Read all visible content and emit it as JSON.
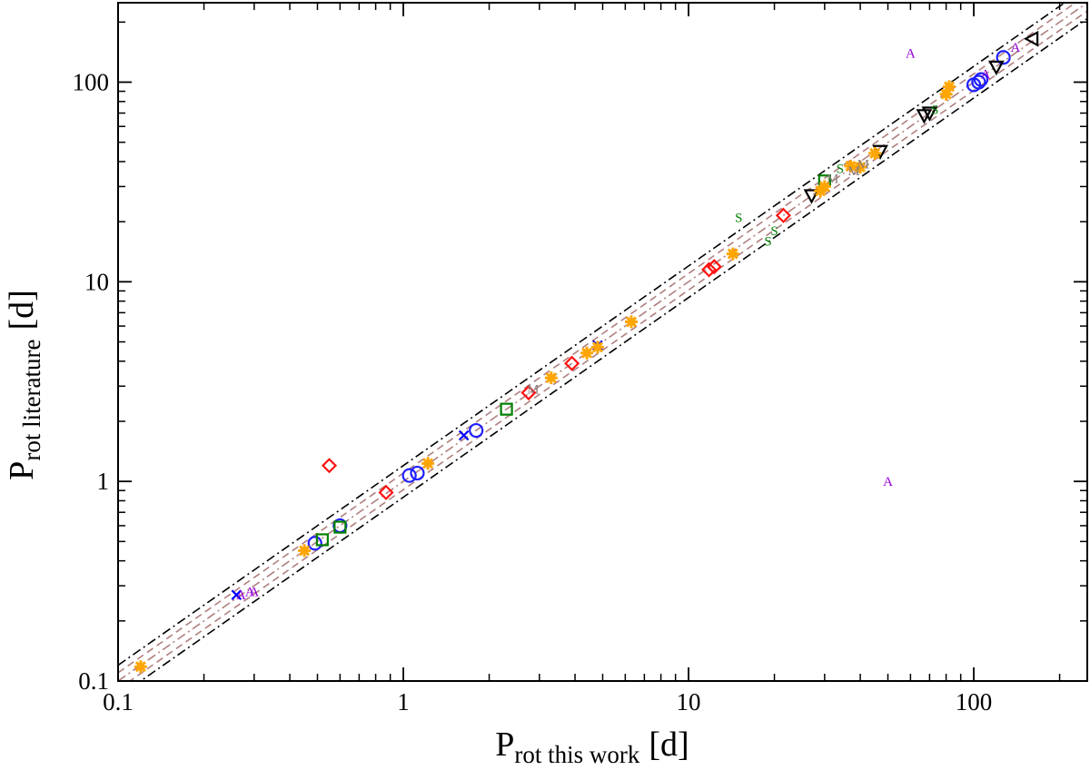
{
  "chart_data": {
    "type": "scatter",
    "title": "",
    "xlabel": {
      "main": "P",
      "sub": "rot this work",
      "unit": "[d]"
    },
    "ylabel": {
      "main": "P",
      "sub": "rot literature",
      "unit": "[d]"
    },
    "xscale": "log",
    "yscale": "log",
    "xlim": [
      0.1,
      250
    ],
    "ylim": [
      0.1,
      250
    ],
    "x_ticks": [
      {
        "value": 0.1,
        "label": "0.1"
      },
      {
        "value": 1,
        "label": "1"
      },
      {
        "value": 10,
        "label": "10"
      },
      {
        "value": 100,
        "label": "100"
      }
    ],
    "y_ticks": [
      {
        "value": 0.1,
        "label": "0.1"
      },
      {
        "value": 1,
        "label": "1"
      },
      {
        "value": 10,
        "label": "10"
      },
      {
        "value": 100,
        "label": "100"
      }
    ],
    "grid": false,
    "reference_lines": [
      {
        "kind": "ratio",
        "factor": 1.0,
        "style": "dashdot",
        "color": "#b07f7f"
      },
      {
        "kind": "ratio",
        "factor": 1.1,
        "style": "dashed",
        "color": "#b07f7f"
      },
      {
        "kind": "ratio",
        "factor": 0.909,
        "style": "dashed",
        "color": "#b07f7f"
      },
      {
        "kind": "ratio",
        "factor": 1.2,
        "style": "dashdot",
        "color": "#000000"
      },
      {
        "kind": "ratio",
        "factor": 0.833,
        "style": "dashdot",
        "color": "#000000"
      }
    ],
    "series": [
      {
        "marker": "circle",
        "color": "#1f1fff",
        "points": [
          [
            0.49,
            0.49
          ],
          [
            0.6,
            0.6
          ],
          [
            1.05,
            1.07
          ],
          [
            1.12,
            1.1
          ],
          [
            1.8,
            1.8
          ],
          [
            100,
            97
          ],
          [
            104,
            100
          ],
          [
            106,
            103
          ],
          [
            127,
            133
          ]
        ]
      },
      {
        "marker": "diamond",
        "color": "#ff1010",
        "points": [
          [
            0.55,
            1.2
          ],
          [
            0.87,
            0.88
          ],
          [
            2.75,
            2.78
          ],
          [
            3.9,
            3.9
          ],
          [
            11.8,
            11.5
          ],
          [
            12.3,
            11.9
          ],
          [
            21.5,
            21.5
          ]
        ]
      },
      {
        "marker": "square",
        "color": "#008000",
        "points": [
          [
            0.52,
            0.51
          ],
          [
            0.6,
            0.59
          ],
          [
            2.3,
            2.3
          ],
          [
            30,
            32
          ]
        ]
      },
      {
        "marker": "cross",
        "color": "#0000ff",
        "points": [
          [
            0.26,
            0.27
          ],
          [
            1.63,
            1.7
          ],
          [
            4.8,
            4.8
          ]
        ]
      },
      {
        "marker": "triangle-down",
        "color": "#000000",
        "points": [
          [
            27,
            27
          ],
          [
            47,
            45
          ],
          [
            67,
            68
          ],
          [
            70,
            70
          ],
          [
            120,
            119
          ]
        ]
      },
      {
        "marker": "triangle-left",
        "color": "#000000",
        "points": [
          [
            160,
            165
          ]
        ]
      },
      {
        "marker": "star",
        "color": "#ffa500",
        "points": [
          [
            0.12,
            0.118
          ],
          [
            0.45,
            0.45
          ],
          [
            1.22,
            1.23
          ],
          [
            3.3,
            3.3
          ],
          [
            4.4,
            4.4
          ],
          [
            4.8,
            4.7
          ],
          [
            6.3,
            6.3
          ],
          [
            14.3,
            13.8
          ],
          [
            29,
            28.5
          ],
          [
            30,
            30
          ],
          [
            37,
            38
          ],
          [
            40,
            37.5
          ],
          [
            45,
            44
          ],
          [
            80,
            87
          ],
          [
            82,
            95
          ]
        ]
      },
      {
        "marker": "letter",
        "label": "A",
        "color": "#9400d3",
        "points": [
          [
            0.27,
            0.27
          ],
          [
            0.29,
            0.28
          ],
          [
            0.3,
            0.28
          ],
          [
            60,
            140
          ],
          [
            50,
            1.0
          ],
          [
            110,
            110
          ],
          [
            140,
            150
          ]
        ]
      },
      {
        "marker": "letter",
        "label": "S",
        "color": "#008000",
        "points": [
          [
            15,
            21
          ],
          [
            19,
            16
          ],
          [
            20,
            18
          ],
          [
            34,
            37
          ],
          [
            73,
            73
          ]
        ]
      },
      {
        "marker": "letter",
        "label": "M",
        "color": "#8b7d7b",
        "points": [
          [
            2.85,
            2.9
          ],
          [
            32,
            33
          ],
          [
            38,
            36
          ],
          [
            41,
            39
          ]
        ]
      }
    ]
  }
}
